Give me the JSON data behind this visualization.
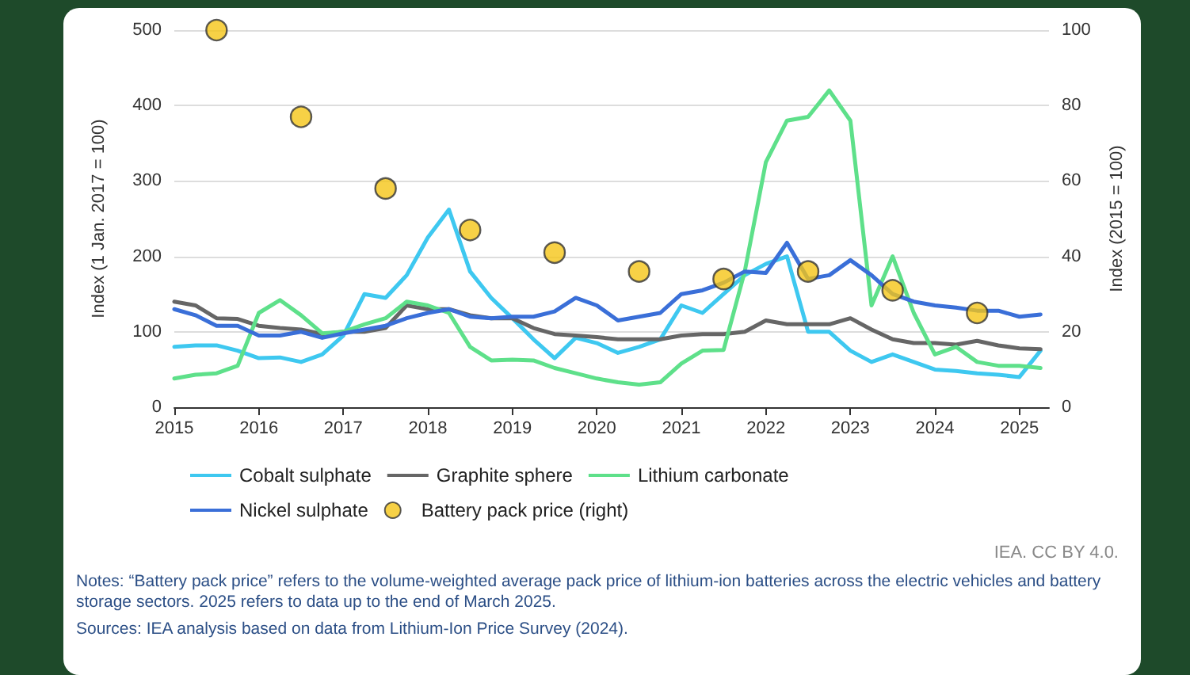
{
  "chart_data": {
    "type": "line",
    "x": [
      2015,
      2015.25,
      2015.5,
      2015.75,
      2016,
      2016.25,
      2016.5,
      2016.75,
      2017,
      2017.25,
      2017.5,
      2017.75,
      2018,
      2018.25,
      2018.5,
      2018.75,
      2019,
      2019.25,
      2019.5,
      2019.75,
      2020,
      2020.25,
      2020.5,
      2020.75,
      2021,
      2021.25,
      2021.5,
      2021.75,
      2022,
      2022.25,
      2022.5,
      2022.75,
      2023,
      2023.25,
      2023.5,
      2023.75,
      2024,
      2024.25,
      2024.5,
      2024.75,
      2025,
      2025.25
    ],
    "series": [
      {
        "name": "Cobalt sulphate",
        "color": "#3ec8f0",
        "values": [
          80,
          82,
          82,
          75,
          65,
          66,
          60,
          70,
          95,
          150,
          145,
          175,
          225,
          262,
          180,
          145,
          118,
          90,
          65,
          92,
          85,
          72,
          80,
          90,
          135,
          125,
          150,
          175,
          190,
          200,
          100,
          100,
          75,
          60,
          70,
          60,
          50,
          48,
          45,
          43,
          40,
          75
        ]
      },
      {
        "name": "Graphite sphere",
        "color": "#666666",
        "values": [
          140,
          135,
          118,
          117,
          108,
          105,
          103,
          97,
          100,
          100,
          105,
          135,
          130,
          130,
          122,
          118,
          118,
          105,
          97,
          95,
          93,
          90,
          90,
          90,
          95,
          97,
          97,
          100,
          115,
          110,
          110,
          110,
          118,
          103,
          90,
          85,
          85,
          83,
          88,
          82,
          78,
          77
        ]
      },
      {
        "name": "Lithium carbonate",
        "color": "#5ee08a",
        "values": [
          38,
          43,
          45,
          55,
          125,
          142,
          122,
          98,
          100,
          110,
          118,
          140,
          135,
          125,
          80,
          62,
          63,
          62,
          52,
          45,
          38,
          33,
          30,
          33,
          58,
          75,
          76,
          180,
          325,
          380,
          385,
          420,
          380,
          135,
          200,
          125,
          70,
          80,
          60,
          55,
          55,
          52
        ]
      },
      {
        "name": "Nickel sulphate",
        "color": "#3a6fd8",
        "values": [
          130,
          122,
          108,
          108,
          95,
          95,
          100,
          92,
          98,
          103,
          108,
          118,
          125,
          130,
          120,
          118,
          120,
          120,
          127,
          145,
          135,
          115,
          120,
          125,
          150,
          155,
          165,
          180,
          178,
          218,
          170,
          175,
          195,
          175,
          150,
          140,
          135,
          132,
          128,
          128,
          120,
          123
        ]
      },
      {
        "name": "Battery pack price (right)",
        "type": "scatter",
        "marker": "circle",
        "axis": "y2",
        "color": "#f5c518",
        "x": [
          2015.5,
          2016.5,
          2017.5,
          2018.5,
          2019.5,
          2020.5,
          2021.5,
          2022.5,
          2023.5,
          2024.5
        ],
        "values": [
          100,
          77,
          58,
          47,
          41,
          36,
          34,
          36,
          31,
          25
        ]
      }
    ],
    "ylabel": "Index (1 Jan. 2017 = 100)",
    "y2label": "Index (2015 = 100)",
    "xlim": [
      2015,
      2025.35
    ],
    "xticks": [
      2015,
      2016,
      2017,
      2018,
      2019,
      2020,
      2021,
      2022,
      2023,
      2024,
      2025
    ],
    "ylim": [
      0,
      500
    ],
    "yticks": [
      0,
      100,
      200,
      300,
      400,
      500
    ],
    "y2lim": [
      0,
      100
    ],
    "y2ticks": [
      0,
      20,
      40,
      60,
      80,
      100
    ],
    "grid": "y",
    "legend": "bottom",
    "marker": "none",
    "annotations": [
      "IEA. CC BY 4.0.",
      "Notes: “Battery pack price” refers to the volume-weighted average pack price of lithium-ion batteries across the electric vehicles and battery storage sectors. 2025 refers to data up to the end of March 2025.",
      "Sources: IEA analysis based on data from Lithium-Ion Price Survey (2024)."
    ]
  }
}
